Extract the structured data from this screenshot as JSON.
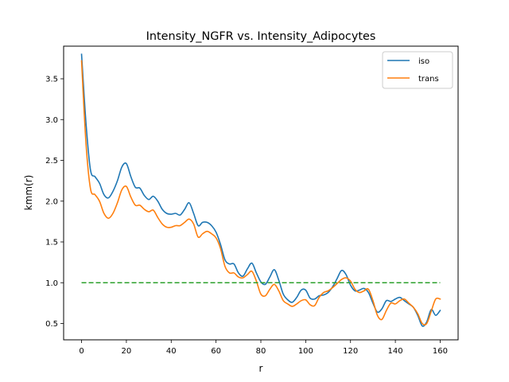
{
  "chart_data": {
    "type": "line",
    "title": "Intensity_NGFR vs. Intensity_Adipocytes",
    "xlabel": "r",
    "ylabel": "kmm(r)",
    "xlim": [
      -8,
      168
    ],
    "ylim": [
      0.3,
      3.9
    ],
    "xticks": [
      0,
      20,
      40,
      60,
      80,
      100,
      120,
      140,
      160
    ],
    "yticks": [
      0.5,
      1.0,
      1.5,
      2.0,
      2.5,
      3.0,
      3.5
    ],
    "xtick_labels": [
      "0",
      "20",
      "40",
      "60",
      "80",
      "100",
      "120",
      "140",
      "160"
    ],
    "ytick_labels": [
      "0.5",
      "1.0",
      "1.5",
      "2.0",
      "2.5",
      "3.0",
      "3.5"
    ],
    "grid": false,
    "legend": {
      "position": "top-right",
      "entries": [
        "iso",
        "trans"
      ]
    },
    "reference_line": {
      "y": 1.0,
      "x_range": [
        0,
        160
      ],
      "color": "#2ca02c",
      "style": "dashed"
    },
    "series": [
      {
        "name": "iso",
        "color": "#1f77b4",
        "x": [
          0,
          2,
          4,
          6,
          8,
          10,
          12,
          14,
          16,
          18,
          20,
          22,
          24,
          26,
          28,
          30,
          32,
          34,
          36,
          38,
          40,
          42,
          44,
          46,
          48,
          50,
          52,
          54,
          56,
          58,
          60,
          62,
          64,
          66,
          68,
          70,
          72,
          74,
          76,
          78,
          80,
          82,
          84,
          86,
          88,
          90,
          92,
          94,
          96,
          98,
          100,
          102,
          104,
          106,
          108,
          110,
          112,
          114,
          116,
          118,
          120,
          122,
          124,
          126,
          128,
          130,
          132,
          134,
          136,
          138,
          140,
          142,
          144,
          146,
          148,
          150,
          152,
          154,
          156,
          158,
          160
        ],
        "y": [
          3.8,
          2.95,
          2.38,
          2.3,
          2.22,
          2.08,
          2.04,
          2.12,
          2.25,
          2.42,
          2.46,
          2.3,
          2.17,
          2.16,
          2.07,
          2.02,
          2.06,
          2.0,
          1.9,
          1.85,
          1.84,
          1.85,
          1.83,
          1.9,
          1.98,
          1.85,
          1.7,
          1.74,
          1.74,
          1.7,
          1.62,
          1.47,
          1.28,
          1.23,
          1.23,
          1.12,
          1.08,
          1.17,
          1.24,
          1.12,
          1.01,
          0.98,
          1.07,
          1.16,
          1.03,
          0.86,
          0.79,
          0.76,
          0.82,
          0.91,
          0.91,
          0.81,
          0.8,
          0.84,
          0.85,
          0.88,
          0.95,
          1.05,
          1.15,
          1.1,
          0.97,
          0.9,
          0.91,
          0.93,
          0.88,
          0.75,
          0.64,
          0.68,
          0.78,
          0.77,
          0.8,
          0.82,
          0.78,
          0.74,
          0.7,
          0.6,
          0.47,
          0.52,
          0.67,
          0.6,
          0.66
        ]
      },
      {
        "name": "trans",
        "color": "#ff7f0e",
        "x": [
          0,
          2,
          4,
          6,
          8,
          10,
          12,
          14,
          16,
          18,
          20,
          22,
          24,
          26,
          28,
          30,
          32,
          34,
          36,
          38,
          40,
          42,
          44,
          46,
          48,
          50,
          52,
          54,
          56,
          58,
          60,
          62,
          64,
          66,
          68,
          70,
          72,
          74,
          76,
          78,
          80,
          82,
          84,
          86,
          88,
          90,
          92,
          94,
          96,
          98,
          100,
          102,
          104,
          106,
          108,
          110,
          112,
          114,
          116,
          118,
          120,
          122,
          124,
          126,
          128,
          130,
          132,
          134,
          136,
          138,
          140,
          142,
          144,
          146,
          148,
          150,
          152,
          154,
          156,
          158,
          160
        ],
        "y": [
          3.72,
          2.7,
          2.15,
          2.08,
          2.0,
          1.85,
          1.79,
          1.85,
          1.98,
          2.14,
          2.18,
          2.05,
          1.95,
          1.95,
          1.9,
          1.87,
          1.89,
          1.8,
          1.72,
          1.68,
          1.68,
          1.7,
          1.7,
          1.74,
          1.78,
          1.72,
          1.56,
          1.6,
          1.63,
          1.6,
          1.55,
          1.42,
          1.2,
          1.12,
          1.12,
          1.07,
          1.06,
          1.1,
          1.14,
          1.02,
          0.86,
          0.84,
          0.92,
          0.98,
          0.9,
          0.78,
          0.74,
          0.71,
          0.74,
          0.78,
          0.79,
          0.73,
          0.72,
          0.82,
          0.88,
          0.9,
          0.94,
          0.99,
          1.04,
          1.06,
          1.02,
          0.92,
          0.88,
          0.9,
          0.92,
          0.78,
          0.6,
          0.55,
          0.66,
          0.75,
          0.74,
          0.78,
          0.8,
          0.75,
          0.7,
          0.62,
          0.5,
          0.5,
          0.65,
          0.8,
          0.8
        ]
      }
    ]
  }
}
